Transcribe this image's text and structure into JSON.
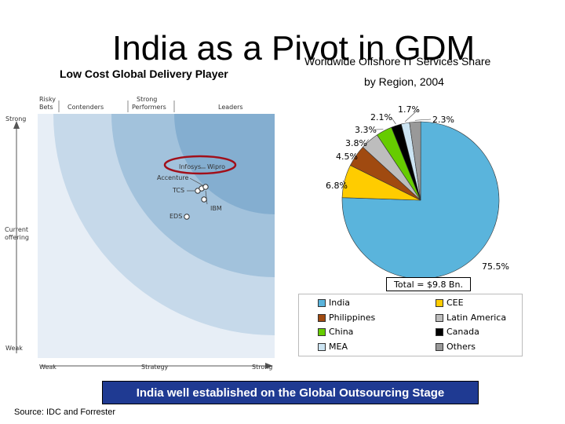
{
  "slide": {
    "title": "India as a Pivot in GDM",
    "subtitle_left": "Low Cost Global Delivery Player",
    "pie_title_line1": "Worldwide Offshore IT Services Share",
    "pie_title_line2": "by Region, 2004",
    "banner": "India well established on the Global Outsourcing Stage",
    "source": "Source: IDC and Forrester"
  },
  "wave": {
    "y_top": "Strong",
    "y_bottom": "Weak",
    "y_axis_label_1": "Current",
    "y_axis_label_2": "offering",
    "x_left": "Weak",
    "x_mid": "Strategy",
    "x_right": "Strong",
    "cat_risky_1": "Risky",
    "cat_risky_2": "Bets",
    "cat_contenders": "Contenders",
    "cat_strong_1": "Strong",
    "cat_strong_2": "Performers",
    "cat_leaders": "Leaders",
    "vendors": {
      "infosys": "Infosys",
      "wipro": "Wipro",
      "accenture": "Accenture",
      "tcs": "TCS",
      "ibm": "IBM",
      "eds": "EDS"
    },
    "colors": {
      "band1": "#e7eef6",
      "band2": "#c6d9ea",
      "band3": "#a2c2dc",
      "band4": "#84aed0",
      "highlight": "#a10f1a"
    }
  },
  "chart_data": {
    "type": "pie",
    "title": "Worldwide Offshore IT Services Share by Region, 2004",
    "total_label": "Total = $9.8 Bn.",
    "labels": [
      "India",
      "CEE",
      "Philippines",
      "Latin America",
      "China",
      "Canada",
      "MEA",
      "Others"
    ],
    "values": [
      75.5,
      6.8,
      4.5,
      3.8,
      3.3,
      2.1,
      1.7,
      2.3
    ],
    "value_labels": [
      "75.5%",
      "6.8%",
      "4.5%",
      "3.8%",
      "3.3%",
      "2.1%",
      "1.7%",
      "2.3%"
    ],
    "colors": [
      "#5ab4dc",
      "#ffcc00",
      "#a04a10",
      "#bdbdbd",
      "#66cc00",
      "#000000",
      "#cce4f2",
      "#999999"
    ],
    "legend": [
      {
        "label": "India",
        "color": "#5ab4dc"
      },
      {
        "label": "CEE",
        "color": "#ffcc00"
      },
      {
        "label": "Philippines",
        "color": "#a04a10"
      },
      {
        "label": "Latin America",
        "color": "#bdbdbd"
      },
      {
        "label": "China",
        "color": "#66cc00"
      },
      {
        "label": "Canada",
        "color": "#000000"
      },
      {
        "label": "MEA",
        "color": "#cce4f2"
      },
      {
        "label": "Others",
        "color": "#999999"
      }
    ]
  }
}
